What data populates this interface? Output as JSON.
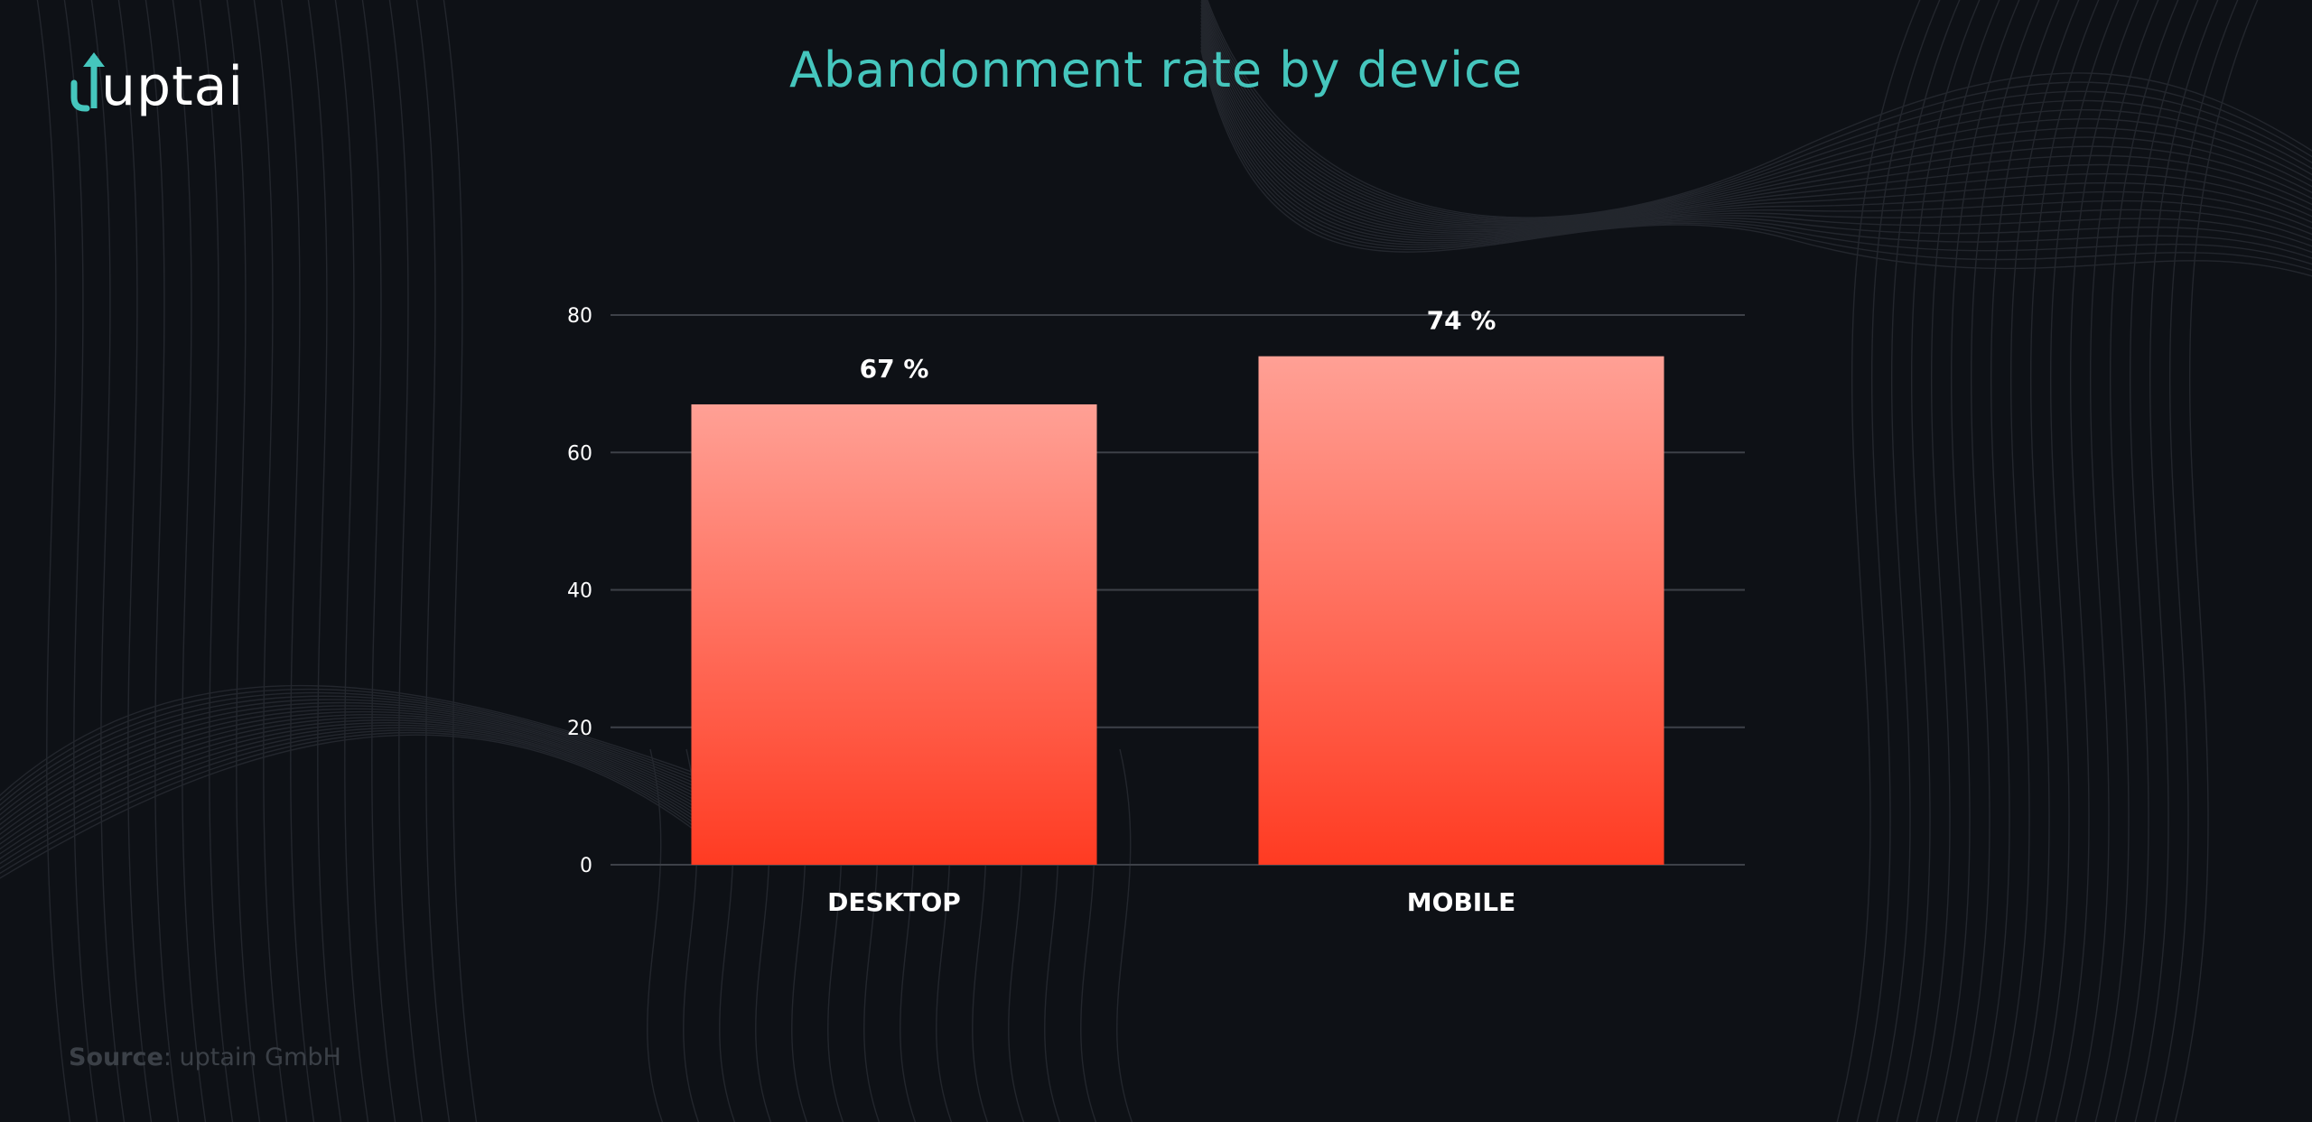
{
  "brand": {
    "logo_text": "uptain",
    "accent_color": "#45c6bd"
  },
  "header": {
    "title": "Abandonment rate by device"
  },
  "footer": {
    "source_label": "Source",
    "source_value": ": uptain GmbH"
  },
  "chart_data": {
    "type": "bar",
    "title": "Abandonment rate by device",
    "xlabel": "",
    "ylabel": "",
    "categories": [
      "DESKTOP",
      "MOBILE"
    ],
    "values": [
      67,
      74
    ],
    "value_labels": [
      "67 %",
      "74 %"
    ],
    "ylim": [
      0,
      80
    ],
    "yticks": [
      0,
      20,
      40,
      60,
      80
    ],
    "grid": true,
    "legend": "none",
    "bar_gradient": {
      "top": "#ffa095",
      "bottom": "#ff3b22"
    },
    "grid_color": "#3d4148"
  }
}
